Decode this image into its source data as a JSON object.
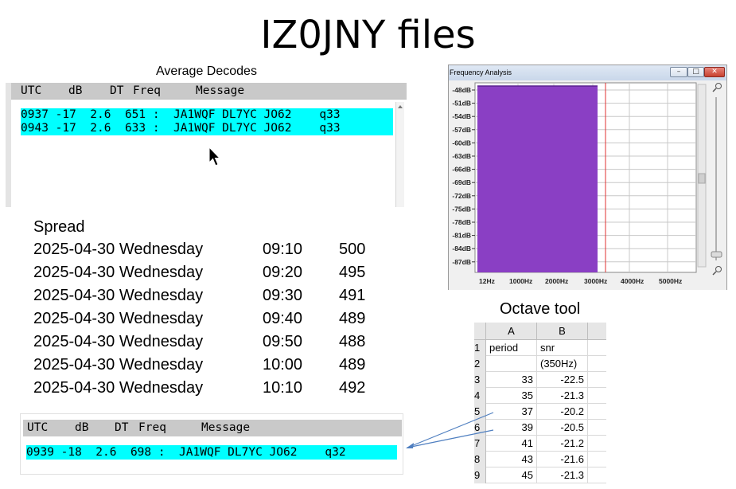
{
  "slide_title": "IZ0JNY files",
  "average_decodes": {
    "caption": "Average Decodes",
    "columns": [
      "UTC",
      "dB",
      "DT",
      "Freq",
      "Message"
    ],
    "lines": [
      "0937 -17  2.6  651 :  JA1WQF DL7YC JO62    q33",
      "0943 -17  2.6  633 :  JA1WQF DL7YC JO62    q33"
    ],
    "highlight_color": "#00ffff"
  },
  "spread": {
    "title": "Spread",
    "rows": [
      {
        "date": "2025-04-30 Wednesday",
        "time": "09:10",
        "value": "500"
      },
      {
        "date": "2025-04-30 Wednesday",
        "time": "09:20",
        "value": "495"
      },
      {
        "date": "2025-04-30 Wednesday",
        "time": "09:30",
        "value": "491"
      },
      {
        "date": "2025-04-30 Wednesday",
        "time": "09:40",
        "value": "489"
      },
      {
        "date": "2025-04-30 Wednesday",
        "time": "09:50",
        "value": "488"
      },
      {
        "date": "2025-04-30 Wednesday",
        "time": "10:00",
        "value": "489"
      },
      {
        "date": "2025-04-30 Wednesday",
        "time": "10:10",
        "value": "492"
      }
    ]
  },
  "bottom_decodes": {
    "columns": [
      "UTC",
      "dB",
      "DT",
      "Freq",
      "Message"
    ],
    "line": "0939 -18  2.6  698 :  JA1WQF DL7YC JO62    q32"
  },
  "frequency_analysis": {
    "window_title": "Frequency Analysis",
    "y_ticks": [
      "-48dB",
      "-51dB",
      "-54dB",
      "-57dB",
      "-60dB",
      "-63dB",
      "-66dB",
      "-69dB",
      "-72dB",
      "-75dB",
      "-78dB",
      "-81dB",
      "-84dB",
      "-87dB"
    ],
    "x_ticks": [
      "12Hz",
      "1000Hz",
      "2000Hz",
      "3000Hz",
      "4000Hz",
      "5000Hz"
    ],
    "fill_color": "#8a3fc4",
    "marker_color": "#e03030",
    "zoom_in_icon": "zoom-in-icon",
    "zoom_out_icon": "zoom-out-icon"
  },
  "octave_tool": {
    "title": "Octave tool",
    "col_headers": [
      "A",
      "B"
    ],
    "rows": [
      {
        "row": "1",
        "a": "period",
        "b": "snr (350Hz)"
      },
      {
        "row": "2",
        "a": "",
        "b": ""
      },
      {
        "row": "3",
        "a": "33",
        "b": "-22.5"
      },
      {
        "row": "4",
        "a": "35",
        "b": "-21.3"
      },
      {
        "row": "5",
        "a": "37",
        "b": "-20.2"
      },
      {
        "row": "6",
        "a": "39",
        "b": "-20.5"
      },
      {
        "row": "7",
        "a": "41",
        "b": "-21.2"
      },
      {
        "row": "8",
        "a": "43",
        "b": "-21.6"
      },
      {
        "row": "9",
        "a": "45",
        "b": "-21.3"
      }
    ]
  }
}
